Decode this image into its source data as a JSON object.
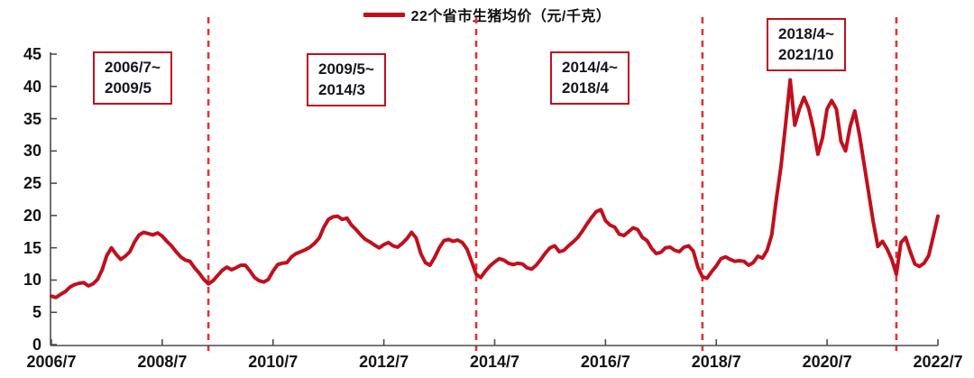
{
  "legend": {
    "label": "22个省市生猪均价（元/千克）"
  },
  "colors": {
    "series": "#c0101e",
    "divider": "#e23333",
    "axis": "#4c4c4c",
    "annotation_border": "#c0101e",
    "text": "#141414"
  },
  "y_axis": {
    "ticks": [
      0,
      5,
      10,
      15,
      20,
      25,
      30,
      35,
      40,
      45
    ]
  },
  "x_axis": {
    "labels": [
      "2006/7",
      "2008/7",
      "2010/7",
      "2012/7",
      "2014/7",
      "2016/7",
      "2018/7",
      "2020/7",
      "2022/7"
    ]
  },
  "annotations": [
    {
      "line1": "2006/7~",
      "line2": "2009/5"
    },
    {
      "line1": "2009/5~",
      "line2": "2014/3"
    },
    {
      "line1": "2014/4~",
      "line2": "2018/4"
    },
    {
      "line1": "2018/4~",
      "line2": "2021/10"
    }
  ],
  "chart_data": {
    "type": "line",
    "title": "22个省市生猪均价（元/千克）",
    "x_start": "2006/7",
    "x_end": "2022/7",
    "frequency": "monthly",
    "xlabel": "",
    "ylabel": "",
    "ylim": [
      0,
      45
    ],
    "y_tick_step": 5,
    "grid": false,
    "legend_position": "top-center",
    "x_tick_labels": [
      "2006/7",
      "2008/7",
      "2010/7",
      "2012/7",
      "2014/7",
      "2016/7",
      "2018/7",
      "2020/7",
      "2022/7"
    ],
    "dividers": [
      {
        "date": "2009/5",
        "month_index": 34
      },
      {
        "date": "2014/3",
        "month_index": 92
      },
      {
        "date": "2018/4",
        "month_index": 141
      },
      {
        "date": "2021/10",
        "month_index": 183
      }
    ],
    "series": [
      {
        "name": "22个省市生猪均价（元/千克）",
        "color": "#c0101e",
        "values": [
          7.5,
          7.3,
          7.8,
          8.2,
          8.9,
          9.3,
          9.5,
          9.6,
          9.1,
          9.4,
          10.1,
          11.6,
          13.8,
          15.0,
          14.0,
          13.2,
          13.7,
          14.4,
          15.9,
          17.0,
          17.4,
          17.2,
          17.0,
          17.3,
          16.8,
          16.0,
          15.3,
          14.4,
          13.6,
          13.1,
          12.9,
          11.9,
          11.1,
          10.1,
          9.4,
          9.9,
          10.7,
          11.5,
          12.0,
          11.6,
          11.9,
          12.3,
          12.3,
          11.4,
          10.4,
          9.9,
          9.7,
          10.1,
          11.4,
          12.4,
          12.6,
          12.7,
          13.6,
          14.1,
          14.4,
          14.7,
          15.1,
          15.7,
          16.5,
          18.2,
          19.4,
          19.8,
          19.9,
          19.4,
          19.6,
          18.5,
          17.8,
          17.0,
          16.3,
          15.9,
          15.4,
          15.0,
          15.5,
          15.8,
          15.3,
          15.1,
          15.7,
          16.4,
          17.4,
          16.5,
          14.1,
          12.7,
          12.3,
          13.5,
          15.0,
          16.1,
          16.3,
          16.0,
          16.2,
          15.8,
          14.8,
          12.9,
          10.9,
          10.4,
          11.4,
          12.2,
          12.8,
          13.3,
          13.1,
          12.6,
          12.4,
          12.6,
          12.5,
          11.9,
          11.7,
          12.3,
          13.2,
          14.2,
          15.0,
          15.3,
          14.4,
          14.6,
          15.3,
          15.9,
          16.6,
          17.6,
          18.7,
          19.7,
          20.6,
          20.9,
          19.2,
          18.5,
          18.2,
          17.1,
          16.9,
          17.5,
          18.1,
          17.8,
          16.6,
          16.1,
          14.9,
          14.1,
          14.3,
          15.0,
          15.1,
          14.6,
          14.4,
          15.1,
          15.3,
          14.5,
          12.0,
          10.5,
          10.3,
          11.3,
          12.2,
          13.3,
          13.6,
          13.2,
          12.9,
          13.0,
          12.9,
          12.3,
          12.7,
          13.7,
          13.4,
          14.6,
          17.0,
          22.5,
          27.5,
          34.0,
          41.0,
          34.0,
          36.5,
          38.3,
          36.6,
          33.5,
          29.5,
          32.0,
          36.5,
          37.8,
          36.5,
          31.5,
          30.0,
          33.8,
          36.2,
          32.5,
          28.0,
          23.5,
          19.0,
          15.2,
          16.0,
          14.8,
          13.2,
          10.9,
          15.8,
          16.6,
          14.4,
          12.5,
          12.1,
          12.6,
          13.8,
          16.8,
          19.9
        ]
      }
    ]
  }
}
